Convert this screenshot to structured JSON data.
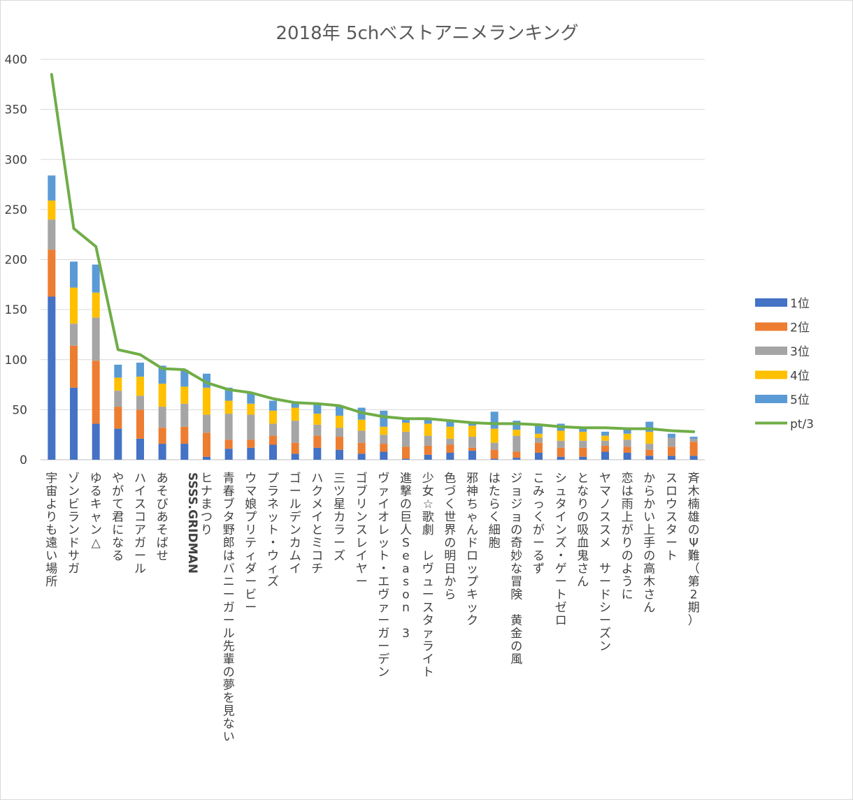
{
  "chart_data": {
    "type": "bar",
    "stacked": true,
    "title": "2018年 5chベストアニメランキング",
    "xlabel": "",
    "ylabel": "",
    "ylim": [
      0,
      400
    ],
    "yticks": [
      0,
      50,
      100,
      150,
      200,
      250,
      300,
      350,
      400
    ],
    "grid": true,
    "legend_position": "right",
    "categories": [
      "宇宙よりも遠い場所",
      "ゾンビランドサガ",
      "ゆるキャン△",
      "やがて君になる",
      "ハイスコアガール",
      "あそびあそばせ",
      "SSSS.GRIDMAN",
      "ヒナまつり",
      "青春ブタ野郎はバニーガール先輩の夢を見ない",
      "ウマ娘プリティダービー",
      "プラネット・ウィズ",
      "ゴールデンカムイ",
      "ハクメイとミコチ",
      "三ツ星カラーズ",
      "ゴブリンスレイヤー",
      "ヴァイオレット・エヴァーガーデン",
      "進撃の巨人Season 3",
      "少女☆歌劇 レヴュースタァライト",
      "色づく世界の明日から",
      "邪神ちゃんドロップキック",
      "はたらく細胞",
      "ジョジョの奇妙な冒険 黄金の風",
      "こみっくがーるず",
      "シュタインズ・ゲートゼロ",
      "となりの吸血鬼さん",
      "ヤマノススメ サードシーズン",
      "恋は雨上がりのように",
      "からかい上手の高木さん",
      "スロウスタート",
      "斉木楠雄のΨ難（第2期）"
    ],
    "series": [
      {
        "name": "1位",
        "color": "#4472C4",
        "values": [
          163,
          72,
          36,
          31,
          21,
          16,
          16,
          3,
          11,
          12,
          15,
          6,
          12,
          10,
          6,
          8,
          1,
          5,
          7,
          9,
          1,
          2,
          7,
          3,
          3,
          8,
          7,
          4,
          4,
          4
        ]
      },
      {
        "name": "2位",
        "color": "#ED7D31",
        "values": [
          47,
          42,
          63,
          22,
          29,
          16,
          17,
          24,
          9,
          8,
          9,
          11,
          12,
          13,
          11,
          8,
          12,
          9,
          8,
          3,
          9,
          6,
          10,
          9,
          9,
          6,
          6,
          6,
          9,
          14
        ]
      },
      {
        "name": "3位",
        "color": "#A5A5A5",
        "values": [
          30,
          22,
          43,
          16,
          14,
          21,
          23,
          18,
          26,
          25,
          12,
          22,
          11,
          9,
          12,
          9,
          15,
          10,
          6,
          11,
          7,
          16,
          5,
          7,
          7,
          5,
          7,
          6,
          9,
          3
        ]
      },
      {
        "name": "4位",
        "color": "#FFC000",
        "values": [
          19,
          36,
          25,
          13,
          19,
          23,
          17,
          27,
          13,
          11,
          13,
          13,
          11,
          12,
          11,
          8,
          9,
          12,
          12,
          11,
          14,
          6,
          4,
          10,
          9,
          5,
          6,
          12,
          0,
          0
        ]
      },
      {
        "name": "5位",
        "color": "#5B9BD5",
        "values": [
          25,
          26,
          28,
          13,
          14,
          18,
          17,
          14,
          13,
          11,
          10,
          6,
          9,
          10,
          12,
          16,
          4,
          6,
          6,
          3,
          17,
          9,
          9,
          7,
          4,
          4,
          6,
          10,
          4,
          2
        ]
      }
    ],
    "line": {
      "name": "pt/3",
      "color": "#70AD47",
      "values": [
        385,
        231,
        213,
        110,
        105,
        91,
        90,
        77,
        70,
        67,
        61,
        57,
        56,
        54,
        47,
        43,
        41,
        41,
        39,
        37,
        36,
        36,
        35,
        33,
        32,
        32,
        31,
        31,
        29,
        28
      ]
    }
  }
}
